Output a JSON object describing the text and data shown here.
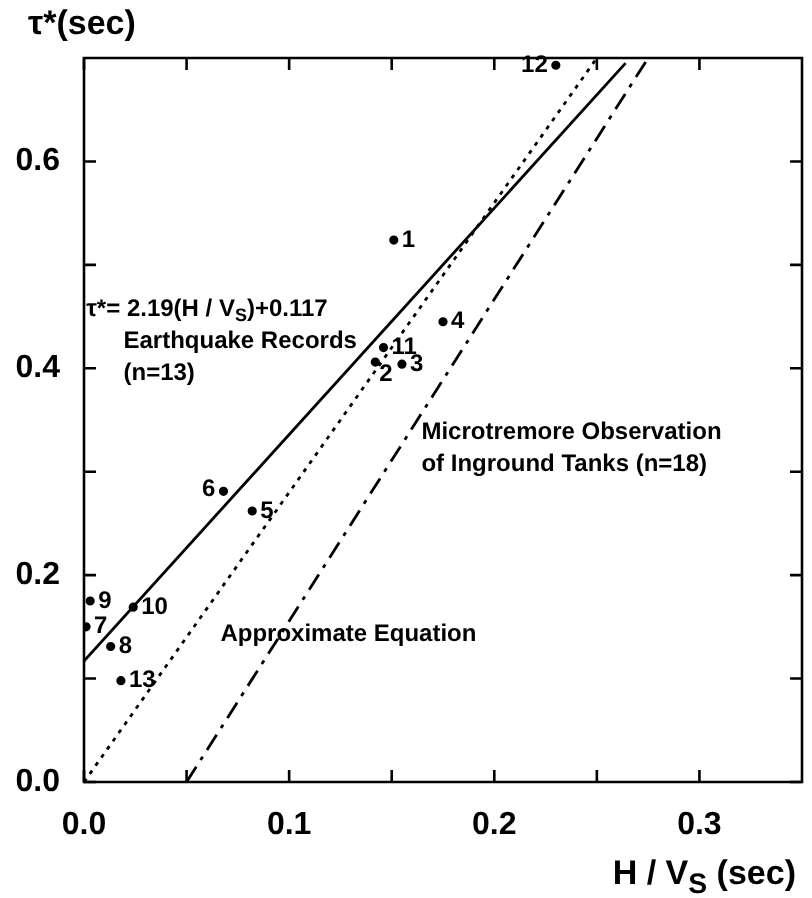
{
  "chart_data": {
    "type": "scatter",
    "xlabel": "H / V$_{S}$  (sec)",
    "ylabel": "τ*(sec)",
    "xlim": [
      0,
      0.35
    ],
    "ylim": [
      0,
      0.7
    ],
    "xticks": [
      {
        "value": 0,
        "label": "0.0"
      },
      {
        "value": 0.05,
        "label": null
      },
      {
        "value": 0.1,
        "label": "0.1"
      },
      {
        "value": 0.15,
        "label": null
      },
      {
        "value": 0.2,
        "label": "0.2"
      },
      {
        "value": 0.25,
        "label": null
      },
      {
        "value": 0.3,
        "label": "0.3"
      }
    ],
    "yticks": [
      {
        "value": 0,
        "label": "0.0"
      },
      {
        "value": 0.1,
        "label": null
      },
      {
        "value": 0.2,
        "label": "0.2"
      },
      {
        "value": 0.3,
        "label": null
      },
      {
        "value": 0.4,
        "label": "0.4"
      },
      {
        "value": 0.5,
        "label": null
      },
      {
        "value": 0.6,
        "label": "0.6"
      }
    ],
    "grid": false,
    "legend": false,
    "series": [
      {
        "color": "#000000",
        "marker": "circle",
        "x": [
          0.151,
          0.142,
          0.155,
          0.175,
          0.082,
          0.068,
          0.001,
          0.013,
          0.003,
          0.024,
          0.146,
          0.23,
          0.018
        ],
        "values": [
          0.524,
          0.406,
          0.404,
          0.445,
          0.262,
          0.281,
          0.15,
          0.131,
          0.175,
          0.169,
          0.42,
          0.693,
          0.098
        ]
      },
      {
        "type": "line",
        "color": "#000000",
        "marker": "none",
        "line_style": "solid",
        "x": [
          0,
          0.264
        ],
        "values": [
          0.117,
          0.695
        ]
      },
      {
        "type": "line",
        "color": "#000000",
        "marker": "none",
        "line_style": "dotted",
        "x": [
          0,
          0.25
        ],
        "values": [
          0,
          0.7
        ]
      },
      {
        "type": "line",
        "color": "#000000",
        "marker": "none",
        "line_style": "dashed",
        "x": [
          0.05,
          0.275
        ],
        "values": [
          0,
          0.7
        ]
      }
    ],
    "annotations": [
      {
        "text": "1",
        "x": 0.151,
        "y": 0.524
      },
      {
        "text": "2",
        "x": 0.142,
        "y": 0.406
      },
      {
        "text": "3",
        "x": 0.155,
        "y": 0.404
      },
      {
        "text": "4",
        "x": 0.175,
        "y": 0.445
      },
      {
        "text": "5",
        "x": 0.082,
        "y": 0.262
      },
      {
        "text": "6",
        "x": 0.068,
        "y": 0.281
      },
      {
        "text": "7",
        "x": 0.001,
        "y": 0.15
      },
      {
        "text": "8",
        "x": 0.013,
        "y": 0.131
      },
      {
        "text": "9",
        "x": 0.003,
        "y": 0.175
      },
      {
        "text": "10",
        "x": 0.024,
        "y": 0.169
      },
      {
        "text": "11",
        "x": 0.146,
        "y": 0.42
      },
      {
        "text": "12",
        "x": 0.23,
        "y": 0.693
      },
      {
        "text": "13",
        "x": 0.018,
        "y": 0.098
      },
      "τ*= 2.19(H / V$_{S}$)+0.117",
      "Earthquake Records\n(n=13)",
      "Microtremore Observation\nof Inground Tanks (n=18)",
      "Approximate Equation"
    ]
  }
}
